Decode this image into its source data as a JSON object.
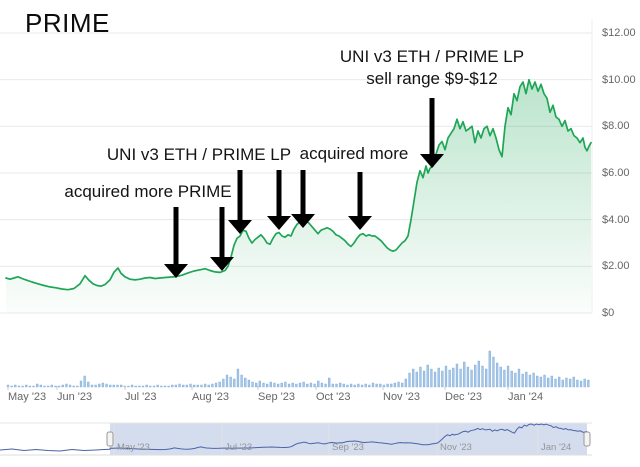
{
  "header": {
    "title": "PRIME"
  },
  "colors": {
    "price_line": "#1ea656",
    "area_top": "rgba(30,166,86,0.30)",
    "area_bottom": "rgba(30,166,86,0.02)",
    "volume_bar": "#a3c6e9",
    "volume_bar_edge": "#7fa9d4",
    "nav_line": "#4a62a8",
    "nav_mask": "rgba(102,133,194,0.28)",
    "nav_handle_fill": "#f4f4f4",
    "nav_handle_border": "#999999",
    "gridline": "#e9e9e9",
    "axis_text": "#666666",
    "arrow": "#000000"
  },
  "chart_data": {
    "type": "line",
    "title": "PRIME",
    "subtitle": "",
    "legend": "none",
    "grid": "horizontal",
    "x_unit": "px from left; month tick positions in x_axis.label_x",
    "y_axis": {
      "labels": [
        "$12.00",
        "$10.00",
        "$8.00",
        "$6.00",
        "$4.00",
        "$2.00",
        "$0"
      ],
      "values": [
        12,
        10,
        8,
        6,
        4,
        2,
        0
      ],
      "ylim": [
        0,
        12.6
      ],
      "side": "right"
    },
    "x_axis": {
      "labels": [
        "May '23",
        "Jun '23",
        "Jul '23",
        "Aug '23",
        "Sep '23",
        "Oct '23",
        "Nov '23",
        "Dec '23",
        "Jan '24"
      ],
      "label_x": [
        8,
        57,
        125,
        192,
        258,
        316,
        383,
        445,
        508
      ]
    },
    "price_series": {
      "name": "PRIME price (USD)",
      "points": [
        [
          6,
          1.5
        ],
        [
          10,
          1.45
        ],
        [
          14,
          1.5
        ],
        [
          18,
          1.55
        ],
        [
          22,
          1.48
        ],
        [
          26,
          1.42
        ],
        [
          32,
          1.33
        ],
        [
          38,
          1.25
        ],
        [
          44,
          1.18
        ],
        [
          50,
          1.12
        ],
        [
          56,
          1.08
        ],
        [
          62,
          1.03
        ],
        [
          68,
          1.0
        ],
        [
          74,
          1.05
        ],
        [
          80,
          1.25
        ],
        [
          85,
          1.6
        ],
        [
          89,
          1.4
        ],
        [
          93,
          1.25
        ],
        [
          97,
          1.18
        ],
        [
          101,
          1.15
        ],
        [
          105,
          1.22
        ],
        [
          110,
          1.42
        ],
        [
          114,
          1.75
        ],
        [
          118,
          1.93
        ],
        [
          121,
          1.7
        ],
        [
          125,
          1.55
        ],
        [
          130,
          1.45
        ],
        [
          135,
          1.42
        ],
        [
          140,
          1.45
        ],
        [
          145,
          1.5
        ],
        [
          150,
          1.52
        ],
        [
          155,
          1.48
        ],
        [
          160,
          1.5
        ],
        [
          165,
          1.52
        ],
        [
          170,
          1.54
        ],
        [
          176,
          1.56
        ],
        [
          182,
          1.62
        ],
        [
          188,
          1.72
        ],
        [
          194,
          1.8
        ],
        [
          200,
          1.85
        ],
        [
          205,
          1.9
        ],
        [
          210,
          1.82
        ],
        [
          215,
          1.76
        ],
        [
          220,
          1.74
        ],
        [
          225,
          1.82
        ],
        [
          228,
          2.0
        ],
        [
          231,
          2.4
        ],
        [
          234,
          2.9
        ],
        [
          237,
          3.2
        ],
        [
          240,
          3.3
        ],
        [
          243,
          3.55
        ],
        [
          246,
          3.5
        ],
        [
          249,
          3.2
        ],
        [
          252,
          3.0
        ],
        [
          255,
          3.15
        ],
        [
          258,
          3.25
        ],
        [
          261,
          3.35
        ],
        [
          264,
          3.2
        ],
        [
          267,
          3.0
        ],
        [
          270,
          2.95
        ],
        [
          273,
          3.2
        ],
        [
          276,
          3.4
        ],
        [
          279,
          3.45
        ],
        [
          282,
          3.3
        ],
        [
          285,
          3.25
        ],
        [
          288,
          3.35
        ],
        [
          291,
          3.3
        ],
        [
          294,
          3.6
        ],
        [
          297,
          3.8
        ],
        [
          300,
          3.9
        ],
        [
          303,
          3.85
        ],
        [
          306,
          3.95
        ],
        [
          309,
          3.85
        ],
        [
          312,
          3.7
        ],
        [
          315,
          3.55
        ],
        [
          318,
          3.4
        ],
        [
          321,
          3.55
        ],
        [
          324,
          3.6
        ],
        [
          327,
          3.65
        ],
        [
          330,
          3.6
        ],
        [
          333,
          3.5
        ],
        [
          336,
          3.35
        ],
        [
          339,
          3.3
        ],
        [
          342,
          3.2
        ],
        [
          345,
          3.1
        ],
        [
          348,
          2.95
        ],
        [
          351,
          2.85
        ],
        [
          354,
          3.0
        ],
        [
          357,
          3.2
        ],
        [
          360,
          3.35
        ],
        [
          363,
          3.4
        ],
        [
          366,
          3.3
        ],
        [
          369,
          3.35
        ],
        [
          372,
          3.3
        ],
        [
          375,
          3.3
        ],
        [
          378,
          3.2
        ],
        [
          381,
          3.1
        ],
        [
          384,
          2.95
        ],
        [
          387,
          2.8
        ],
        [
          390,
          2.7
        ],
        [
          393,
          2.65
        ],
        [
          396,
          2.7
        ],
        [
          399,
          2.85
        ],
        [
          402,
          3.0
        ],
        [
          405,
          3.1
        ],
        [
          408,
          3.3
        ],
        [
          411,
          4.0
        ],
        [
          414,
          4.8
        ],
        [
          417,
          5.6
        ],
        [
          420,
          6.1
        ],
        [
          423,
          5.8
        ],
        [
          426,
          6.3
        ],
        [
          428,
          6.0
        ],
        [
          430,
          6.2
        ],
        [
          433,
          6.3
        ],
        [
          436,
          6.8
        ],
        [
          439,
          7.2
        ],
        [
          442,
          7.35
        ],
        [
          445,
          7.0
        ],
        [
          448,
          7.5
        ],
        [
          451,
          7.7
        ],
        [
          454,
          7.9
        ],
        [
          457,
          8.3
        ],
        [
          460,
          7.9
        ],
        [
          463,
          8.2
        ],
        [
          466,
          7.8
        ],
        [
          469,
          7.9
        ],
        [
          472,
          8.0
        ],
        [
          475,
          7.3
        ],
        [
          478,
          7.8
        ],
        [
          481,
          7.5
        ],
        [
          484,
          7.9
        ],
        [
          487,
          8.0
        ],
        [
          490,
          7.6
        ],
        [
          493,
          7.9
        ],
        [
          496,
          7.5
        ],
        [
          499,
          7.0
        ],
        [
          502,
          6.7
        ],
        [
          505,
          8.0
        ],
        [
          508,
          8.8
        ],
        [
          511,
          8.5
        ],
        [
          514,
          9.4
        ],
        [
          517,
          9.1
        ],
        [
          520,
          9.7
        ],
        [
          523,
          9.9
        ],
        [
          526,
          9.4
        ],
        [
          529,
          10.0
        ],
        [
          532,
          9.6
        ],
        [
          535,
          9.9
        ],
        [
          538,
          9.5
        ],
        [
          541,
          9.8
        ],
        [
          544,
          9.4
        ],
        [
          547,
          9.2
        ],
        [
          550,
          8.6
        ],
        [
          553,
          8.9
        ],
        [
          556,
          8.4
        ],
        [
          559,
          8.3
        ],
        [
          562,
          8.0
        ],
        [
          565,
          8.25
        ],
        [
          568,
          7.8
        ],
        [
          571,
          7.9
        ],
        [
          574,
          7.6
        ],
        [
          577,
          7.5
        ],
        [
          580,
          7.3
        ],
        [
          583,
          7.5
        ],
        [
          585,
          7.1
        ],
        [
          587,
          6.95
        ],
        [
          589,
          7.15
        ],
        [
          591,
          7.3
        ]
      ]
    },
    "volume_series": {
      "name": "volume",
      "units": "relative bar height (px)",
      "x_start": 8,
      "pitch": 3.65,
      "baseline_y": 387,
      "heights": [
        2,
        1,
        2,
        1,
        1,
        2,
        1,
        1,
        3,
        2,
        1,
        1,
        2,
        1,
        1,
        2,
        3,
        2,
        1,
        1,
        6,
        11,
        5,
        2,
        2,
        3,
        4,
        3,
        2,
        2,
        2,
        2,
        1,
        1,
        2,
        1,
        1,
        1,
        2,
        1,
        1,
        2,
        1,
        1,
        1,
        2,
        2,
        3,
        2,
        2,
        3,
        2,
        2,
        2,
        3,
        2,
        3,
        4,
        5,
        8,
        12,
        10,
        8,
        18,
        12,
        9,
        7,
        5,
        4,
        6,
        4,
        3,
        5,
        4,
        3,
        4,
        5,
        3,
        4,
        3,
        4,
        5,
        3,
        4,
        3,
        6,
        4,
        3,
        9,
        3,
        3,
        4,
        3,
        2,
        3,
        2,
        3,
        2,
        3,
        2,
        4,
        3,
        3,
        2,
        3,
        3,
        4,
        5,
        4,
        8,
        14,
        18,
        15,
        20,
        16,
        22,
        18,
        15,
        19,
        16,
        21,
        17,
        19,
        23,
        18,
        25,
        20,
        17,
        22,
        26,
        21,
        18,
        36,
        30,
        24,
        20,
        17,
        21,
        16,
        14,
        18,
        13,
        15,
        12,
        14,
        11,
        10,
        12,
        9,
        11,
        8,
        10,
        7,
        9,
        8,
        10,
        7,
        6,
        8,
        7
      ]
    },
    "navigator": {
      "labels": [
        "May '23",
        "Jul '23",
        "Sep '23",
        "Nov '23",
        "Jan '24"
      ],
      "gridline_x": [
        114,
        222,
        329,
        437,
        538
      ],
      "top": 423,
      "bottom": 455,
      "selected_range": [
        110,
        587
      ],
      "pre_points": [
        [
          0,
          450
        ],
        [
          12,
          449
        ],
        [
          24,
          450.5
        ],
        [
          36,
          449.5
        ],
        [
          48,
          450.5
        ],
        [
          60,
          451
        ],
        [
          72,
          449.5
        ],
        [
          84,
          450.5
        ],
        [
          96,
          450
        ],
        [
          104,
          449.5
        ],
        [
          110,
          449.3
        ]
      ]
    },
    "annotations": {
      "texts": [
        {
          "id": "acquired-more-prime",
          "text": "acquired more PRIME",
          "cx": 148,
          "top": 181
        },
        {
          "id": "uni-v3-lp",
          "text": "UNI v3 ETH / PRIME LP",
          "cx": 199,
          "top": 144
        },
        {
          "id": "acquired-more",
          "text": "acquired more",
          "cx": 354,
          "top": 143
        },
        {
          "id": "uni-v3-lp-sell-range",
          "text": "UNI v3 ETH / PRIME LP\nsell range $9-$12",
          "cx": 432,
          "top": 46
        }
      ],
      "arrows": [
        {
          "x": 176,
          "y_top": 207,
          "y_tip": 278
        },
        {
          "x": 222,
          "y_top": 207,
          "y_tip": 271
        },
        {
          "x": 240,
          "y_top": 170,
          "y_tip": 234
        },
        {
          "x": 279,
          "y_top": 170,
          "y_tip": 230
        },
        {
          "x": 303,
          "y_top": 170,
          "y_tip": 228
        },
        {
          "x": 360,
          "y_top": 172,
          "y_tip": 230
        },
        {
          "x": 432,
          "y_top": 98,
          "y_tip": 168
        }
      ]
    }
  }
}
